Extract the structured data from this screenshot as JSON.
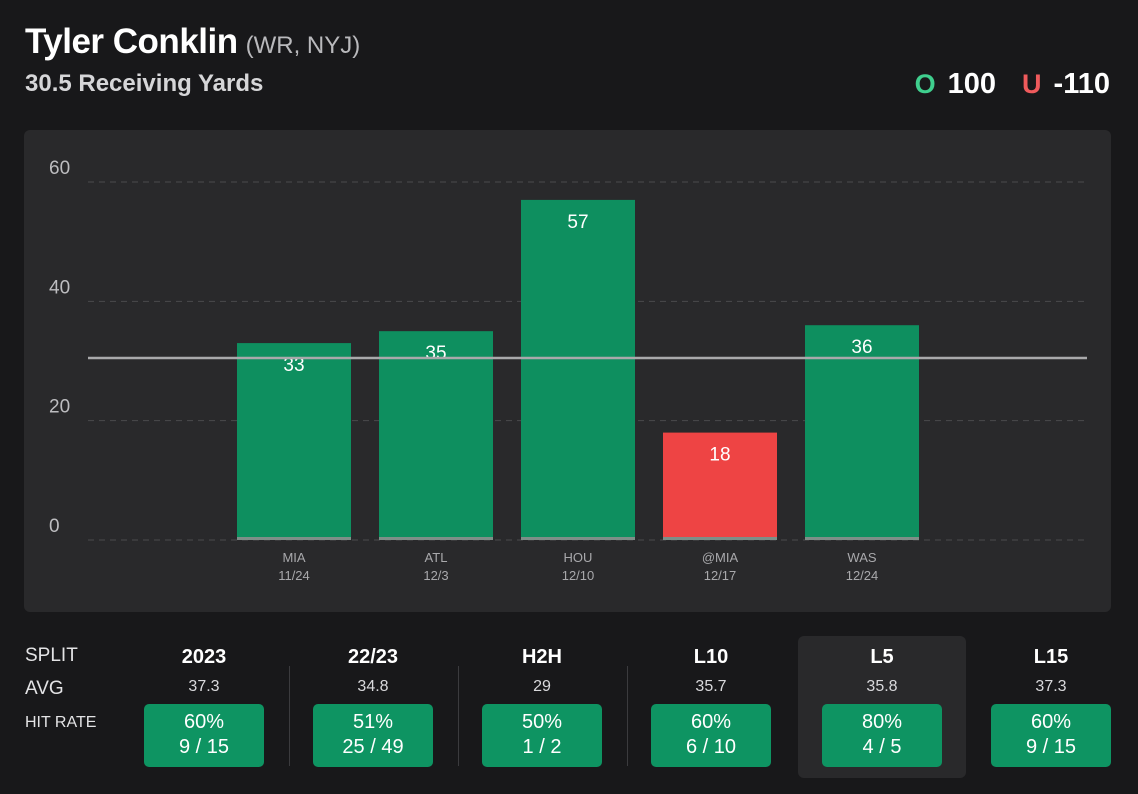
{
  "header": {
    "player_name": "Tyler Conklin",
    "player_meta": "(WR, NYJ)",
    "prop_line": "30.5 Receiving Yards"
  },
  "odds": {
    "over_letter": "O",
    "over_value": "100",
    "under_letter": "U",
    "under_value": "-110"
  },
  "colors": {
    "hit": "#0e8f5f",
    "miss": "#ee4444",
    "over": "#3fcf8e",
    "under": "#ef5a5c"
  },
  "chart_data": {
    "type": "bar",
    "title": "Tyler Conklin 30.5 Receiving Yards",
    "xlabel": "",
    "ylabel": "",
    "ylim": [
      0,
      60
    ],
    "yticks": [
      0,
      20,
      40,
      60
    ],
    "grid": true,
    "threshold": 30.5,
    "categories": [
      "MIA",
      "ATL",
      "HOU",
      "@MIA",
      "WAS"
    ],
    "dates": [
      "11/24",
      "12/3",
      "12/10",
      "12/17",
      "12/24"
    ],
    "values": [
      33,
      35,
      57,
      18,
      36
    ],
    "bar_labels": [
      "33",
      "35",
      "57",
      "18",
      "36"
    ]
  },
  "splits": {
    "row_labels": {
      "split": "SPLIT",
      "avg": "AVG",
      "hit_rate": "HIT RATE"
    },
    "columns": [
      {
        "name": "2023",
        "avg": "37.3",
        "pct": "60%",
        "record": "9 / 15"
      },
      {
        "name": "22/23",
        "avg": "34.8",
        "pct": "51%",
        "record": "25 / 49"
      },
      {
        "name": "H2H",
        "avg": "29",
        "pct": "50%",
        "record": "1 / 2"
      },
      {
        "name": "L10",
        "avg": "35.7",
        "pct": "60%",
        "record": "6 / 10"
      },
      {
        "name": "L5",
        "avg": "35.8",
        "pct": "80%",
        "record": "4 / 5"
      },
      {
        "name": "L15",
        "avg": "37.3",
        "pct": "60%",
        "record": "9 / 15"
      }
    ]
  }
}
